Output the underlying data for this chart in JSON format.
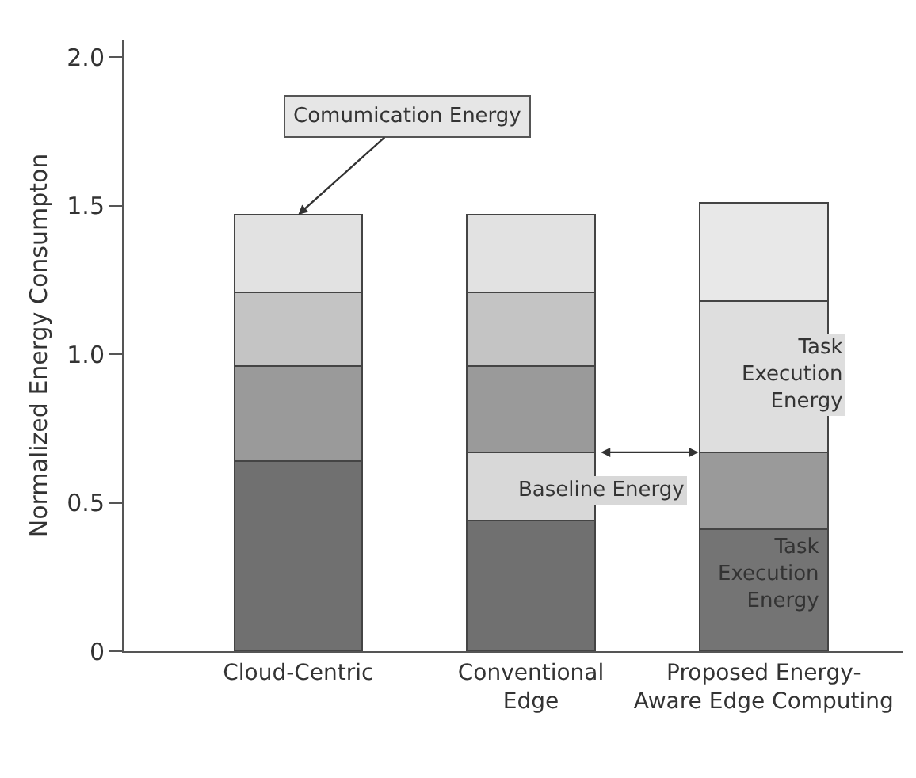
{
  "chart_data": {
    "type": "bar",
    "stacked": true,
    "ylabel": "Normalized Energy Consumpton",
    "categories": [
      "Cloud-Centric",
      "Conventional\nEdge",
      "Proposed Energy-\nAware Edge Computing"
    ],
    "series": [
      {
        "values": [
          0.64,
          0.44,
          0.41
        ],
        "colors": [
          "#707070",
          "#707070",
          "#747474"
        ]
      },
      {
        "values": [
          0.32,
          0.23,
          0.26
        ],
        "colors": [
          "#9a9a9a",
          "#d8d8d8",
          "#9a9a9a"
        ]
      },
      {
        "values": [
          0.25,
          0.29,
          0.51
        ],
        "colors": [
          "#c4c4c4",
          "#9a9a9a",
          "#dedede"
        ]
      },
      {
        "values": [
          0.26,
          0.25,
          0.33
        ],
        "colors": [
          "#e2e2e2",
          "#c4c4c4",
          "#e8e8e8"
        ]
      },
      {
        "values": [
          null,
          0.26,
          null
        ],
        "colors": [
          "#e2e2e2",
          "#e2e2e2",
          "#e2e2e2"
        ]
      }
    ],
    "ylim": [
      0,
      2.06
    ],
    "yticks": [
      0,
      0.5,
      {
        "value": 1.0,
        "label": "1.0"
      },
      1.5,
      {
        "value": 2.0,
        "label": "2.0"
      }
    ],
    "annotations": [
      {
        "text": "Comumication Energy",
        "x": "Cloud-Centric",
        "y": 1.47
      },
      {
        "text": "Baseline Energy",
        "x": "Conventional\nEdge",
        "y": 0.67
      },
      "Task\nExecution\nEnergy",
      "Task\nExecution\nEnergy"
    ]
  }
}
